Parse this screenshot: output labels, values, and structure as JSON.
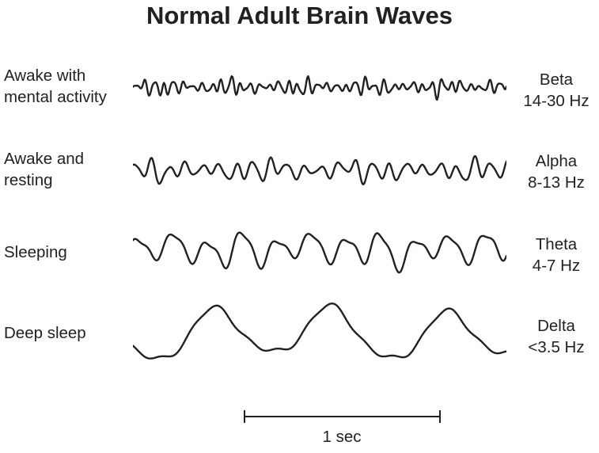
{
  "title": "Normal Adult Brain Waves",
  "colors": {
    "ink": "#242021",
    "background": "#ffffff"
  },
  "rows": [
    {
      "state": "Awake with\nmental activity",
      "band": "Beta",
      "range": "14-30 Hz",
      "wave": {
        "components": [
          {
            "f": 39.0,
            "a": 5.5,
            "p": 0.0
          },
          {
            "f": 59.5,
            "a": 2.2,
            "p": 0.31
          },
          {
            "f": 24.7,
            "a": 2.6,
            "p": 0.68
          },
          {
            "f": 8.3,
            "a": 1.4,
            "p": 0.12
          }
        ],
        "mod": {
          "f": 5.35,
          "depth": 0.45,
          "p": 0.85
        }
      }
    },
    {
      "state": "Awake and\nresting",
      "band": "Alpha",
      "range": "8-13 Hz",
      "wave": {
        "components": [
          {
            "f": 22.0,
            "a": 8.5,
            "p": 0.15
          },
          {
            "f": 34.6,
            "a": 2.4,
            "p": 0.5
          },
          {
            "f": 11.3,
            "a": 3.2,
            "p": 0.82
          },
          {
            "f": 5.1,
            "a": 2.2,
            "p": 0.35
          }
        ],
        "mod": {
          "f": 3.4,
          "depth": 0.35,
          "p": 0.1
        }
      }
    },
    {
      "state": "Sleeping",
      "band": "Theta",
      "range": "4-7 Hz",
      "wave": {
        "components": [
          {
            "f": 10.8,
            "a": 16.0,
            "p": 0.08
          },
          {
            "f": 21.6,
            "a": 4.5,
            "p": 0.3
          },
          {
            "f": 5.7,
            "a": 5.5,
            "p": 0.62
          },
          {
            "f": 2.3,
            "a": 3.0,
            "p": 0.15
          }
        ],
        "mod": {
          "f": 2.7,
          "depth": 0.18,
          "p": 0.5
        }
      }
    },
    {
      "state": "Deep sleep",
      "band": "Delta",
      "range": "<3.5 Hz",
      "wave": {
        "components": [
          {
            "f": 3.2,
            "a": 30.0,
            "p": 0.55
          },
          {
            "f": 6.4,
            "a": 5.0,
            "p": 0.9
          },
          {
            "f": 12.9,
            "a": 2.5,
            "p": 0.25
          },
          {
            "f": 1.35,
            "a": 5.0,
            "p": 0.7
          }
        ],
        "mod": {
          "f": 1.0,
          "depth": 0.0,
          "p": 0.0
        }
      }
    }
  ],
  "scale_bar": {
    "label": "1 sec"
  }
}
